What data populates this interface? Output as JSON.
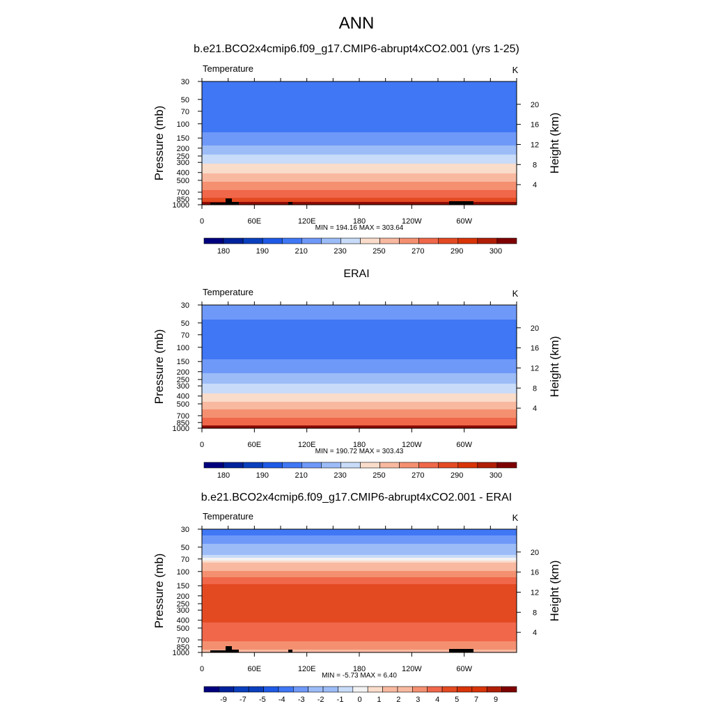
{
  "main_title": "ANN",
  "chart_data": [
    {
      "type": "heatmap",
      "panel_title": "b.e21.BCO2x4cmip6.f09_g17.CMIP6-abrupt4xCO2.001 (yrs 1-25)",
      "variable": "Temperature",
      "units": "K",
      "ylabel": "Pressure (mb)",
      "y2label": "Height (km)",
      "xtick_labels": [
        "0",
        "60E",
        "120E",
        "180",
        "120W",
        "60W"
      ],
      "xtick_lons": [
        0,
        60,
        120,
        180,
        240,
        300
      ],
      "pressure_ticks": [
        30,
        50,
        70,
        100,
        150,
        200,
        250,
        300,
        400,
        500,
        700,
        850,
        1000
      ],
      "height_ticks": [
        4,
        8,
        12,
        16,
        20
      ],
      "stats_text": "MIN = 194.16  MAX = 303.64",
      "min": 194.16,
      "max": 303.64,
      "colorbar_levels": [
        180,
        185,
        190,
        200,
        210,
        220,
        230,
        240,
        250,
        260,
        270,
        280,
        290,
        295,
        300
      ],
      "colorbar_labels": [
        "180",
        "190",
        "210",
        "230",
        "250",
        "270",
        "290",
        "300"
      ],
      "profile": {
        "pressure": [
          30,
          40,
          50,
          70,
          85,
          100,
          120,
          150,
          200,
          250,
          300,
          400,
          500,
          600,
          700,
          850,
          1000
        ],
        "values": [
          207,
          205,
          203,
          202,
          202.5,
          204,
          209,
          214,
          223,
          232,
          239,
          249,
          259,
          266,
          273,
          282,
          289
        ]
      }
    },
    {
      "type": "heatmap",
      "panel_title": "ERAI",
      "variable": "Temperature",
      "units": "K",
      "ylabel": "Pressure (mb)",
      "y2label": "Height (km)",
      "xtick_labels": [
        "0",
        "60E",
        "120E",
        "180",
        "120W",
        "60W"
      ],
      "xtick_lons": [
        0,
        60,
        120,
        180,
        240,
        300
      ],
      "pressure_ticks": [
        30,
        50,
        70,
        100,
        150,
        200,
        250,
        300,
        400,
        500,
        700,
        850,
        1000
      ],
      "height_ticks": [
        4,
        8,
        12,
        16,
        20
      ],
      "stats_text": "MIN = 190.72  MAX = 303.43",
      "min": 190.72,
      "max": 303.43,
      "colorbar_levels": [
        180,
        185,
        190,
        200,
        210,
        220,
        230,
        240,
        250,
        260,
        270,
        280,
        290,
        295,
        300
      ],
      "colorbar_labels": [
        "180",
        "190",
        "210",
        "230",
        "250",
        "270",
        "290",
        "300"
      ],
      "profile": {
        "pressure": [
          30,
          40,
          50,
          70,
          85,
          100,
          120,
          150,
          200,
          250,
          300,
          400,
          500,
          600,
          700,
          850,
          1000
        ],
        "values": [
          213,
          211,
          209,
          206,
          205,
          204.5,
          206,
          212,
          219,
          226,
          233,
          243,
          253,
          262,
          268,
          277,
          285
        ]
      }
    },
    {
      "type": "heatmap",
      "panel_title": "b.e21.BCO2x4cmip6.f09_g17.CMIP6-abrupt4xCO2.001 - ERAI",
      "variable": "Temperature",
      "units": "K",
      "ylabel": "Pressure (mb)",
      "y2label": "Height (km)",
      "xtick_labels": [
        "0",
        "60E",
        "120E",
        "180",
        "120W",
        "60W"
      ],
      "xtick_lons": [
        0,
        60,
        120,
        180,
        240,
        300
      ],
      "pressure_ticks": [
        30,
        50,
        70,
        100,
        150,
        200,
        250,
        300,
        400,
        500,
        700,
        850,
        1000
      ],
      "height_ticks": [
        4,
        8,
        12,
        16,
        20
      ],
      "stats_text": "MIN = -5.73  MAX =  6.40",
      "min": -5.73,
      "max": 6.4,
      "colorbar_levels": [
        -10,
        -9,
        -8,
        -7,
        -6,
        -5,
        -4,
        -3,
        -2,
        -1,
        0,
        1,
        2,
        3,
        4,
        5,
        6,
        7,
        8,
        9
      ],
      "colorbar_labels": [
        "-9",
        "-7",
        "-5",
        "-4",
        "-3",
        "-2",
        "-1",
        "0",
        "1",
        "2",
        "3",
        "4",
        "5",
        "7",
        "9"
      ],
      "profile": {
        "pressure": [
          30,
          40,
          50,
          60,
          70,
          80,
          100,
          120,
          150,
          200,
          300,
          400,
          500,
          600,
          700,
          850,
          1000
        ],
        "values": [
          -5.5,
          -4.6,
          -3.5,
          -2.2,
          -0.6,
          1.5,
          3.2,
          4.2,
          5.3,
          5.6,
          5.5,
          5.1,
          4.6,
          4.3,
          4.1,
          3.2,
          2.7
        ]
      }
    }
  ],
  "colors": {
    "sequential": [
      "#00007f",
      "#00229c",
      "#0a3fbe",
      "#1f5ae6",
      "#3f77f5",
      "#6f99f8",
      "#9cbcf8",
      "#c8dbf8",
      "#f2f2f2",
      "#fadccb",
      "#f8b9a0",
      "#f49070",
      "#f0674a",
      "#e44a22",
      "#d83408",
      "#b11e06",
      "#7f0000"
    ],
    "heat_cap": "#7f0000",
    "terrain": "#000000"
  }
}
